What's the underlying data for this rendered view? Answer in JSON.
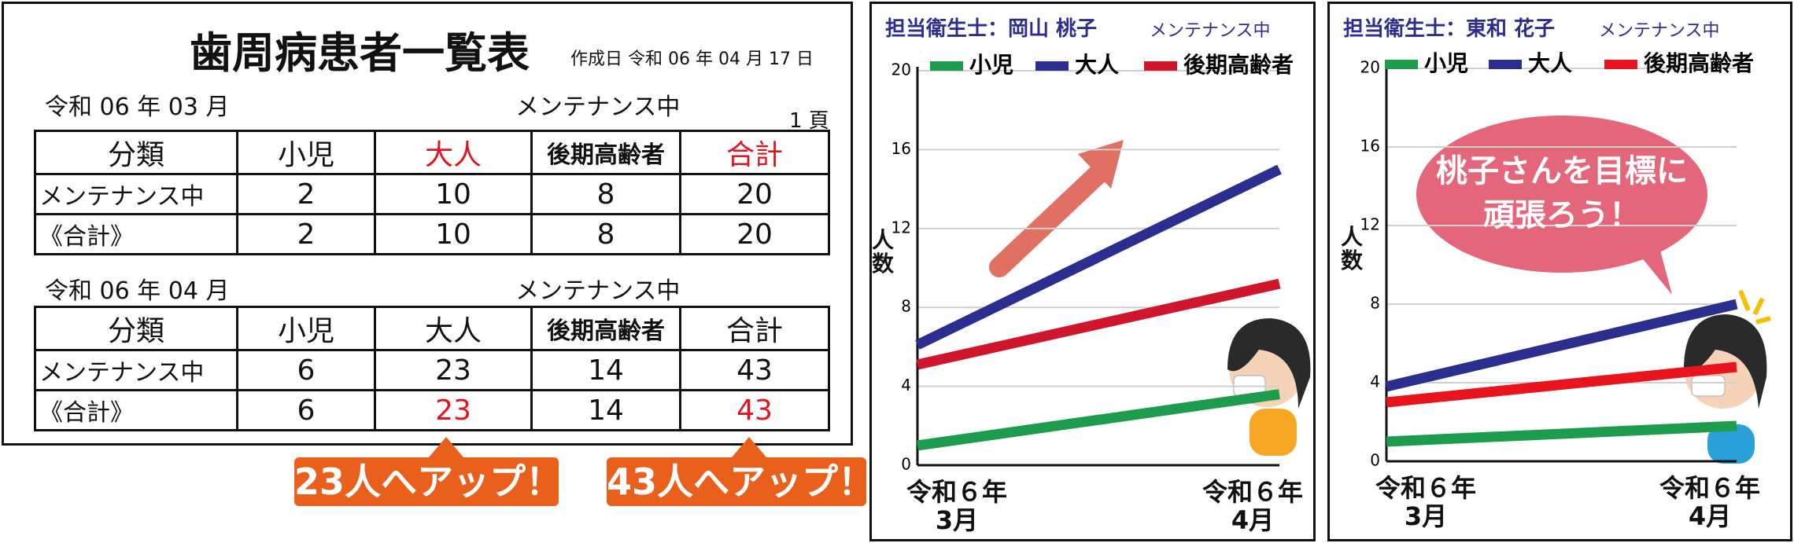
{
  "table_panel": {
    "title": "歯周病患者一覧表",
    "date": "作成日 令和 06 年 04 月 17 日",
    "page": "1 頁",
    "sections": [
      {
        "month": "令和 06 年 03 月",
        "status": "メンテナンス中",
        "header": [
          "分類",
          "小児",
          "大人",
          "後期高齢者",
          "合計"
        ],
        "rows": [
          [
            "メンテナンス中",
            2,
            10,
            8,
            20
          ],
          [
            "《合計》",
            2,
            10,
            8,
            20
          ]
        ]
      },
      {
        "month": "令和 06 年 04 月",
        "status": "メンテナンス中",
        "header": [
          "分類",
          "小児",
          "大人",
          "後期高齢者",
          "合計"
        ],
        "rows": [
          [
            "メンテナンス中",
            6,
            23,
            14,
            43
          ],
          [
            "《合計》",
            6,
            23,
            14,
            43
          ]
        ]
      }
    ]
  },
  "callouts": [
    "23人へアップ！",
    "43人へアップ！"
  ],
  "chart_data": [
    {
      "type": "line",
      "title": "担当衛生士：岡山 桃子",
      "subtitle": "メンテナンス中",
      "y_label": "人\n数",
      "categories": [
        "令和６年\n3月",
        "令和６年\n4月"
      ],
      "series": [
        {
          "name": "小児",
          "color": "#1c9c4c",
          "values": [
            1,
            3.6
          ]
        },
        {
          "name": "大人",
          "color": "#2b2e8f",
          "values": [
            6.1,
            15
          ]
        },
        {
          "name": "後期高齢者",
          "color": "#d0162c",
          "values": [
            5.1,
            9.2
          ]
        }
      ],
      "ylim": [
        0,
        20
      ],
      "yticks": [
        0,
        4,
        8,
        12,
        16,
        20
      ],
      "grid": true
    },
    {
      "type": "line",
      "title": "担当衛生士：東和 花子",
      "subtitle": "メンテナンス中",
      "y_label": "人\n数",
      "annotation": "桃子さんを目標に\n頑張ろう！",
      "categories": [
        "令和６年\n3月",
        "令和６年\n4月"
      ],
      "series": [
        {
          "name": "小児",
          "color": "#1c9c4c",
          "values": [
            1,
            1.8
          ]
        },
        {
          "name": "大人",
          "color": "#2b2e8f",
          "values": [
            3.8,
            8
          ]
        },
        {
          "name": "後期高齢者",
          "color": "#e8141e",
          "values": [
            3,
            4.8
          ]
        }
      ],
      "ylim": [
        0,
        20
      ],
      "yticks": [
        0,
        4,
        8,
        12,
        16,
        20
      ],
      "grid": true
    }
  ]
}
